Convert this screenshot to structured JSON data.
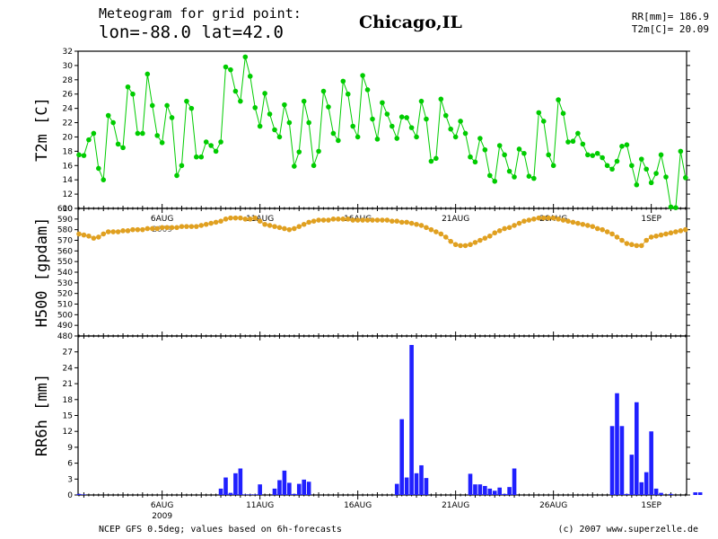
{
  "header": {
    "line1": "Meteogram for grid point:",
    "line2": "lon=-88.0  lat=42.0",
    "city": "Chicago,IL",
    "stat_rr": "RR[mm]= 186.9",
    "stat_t2m": "T2m[C]= 20.09"
  },
  "footer": {
    "source": "NCEP GFS 0.5deg; values based on 6h-forecasts",
    "credit": "(c) 2007 www.superzelle.de"
  },
  "colors": {
    "t2m": "#00cc00",
    "h500": "#e0a020",
    "rr": "#2020ff"
  },
  "chart_data": [
    {
      "type": "line",
      "ylabel": "T2m [C]",
      "ylim": [
        10,
        32
      ],
      "yticks": [
        10,
        12,
        14,
        16,
        18,
        20,
        22,
        24,
        26,
        28,
        30,
        32
      ],
      "date_labels": [
        "6AUG",
        "11AUG",
        "16AUG",
        "21AUG",
        "26AUG",
        "1SEP"
      ],
      "series": [
        {
          "values": [
            17.5,
            17.4,
            19.6,
            20.5,
            15.6,
            14,
            23,
            22,
            19,
            18.5,
            27,
            26,
            20.5,
            20.5,
            28.8,
            24.4,
            20.2,
            19.2,
            24.4,
            22.7,
            14.6,
            16,
            25,
            24,
            17.2,
            17.2,
            19.3,
            18.8,
            18,
            19.3,
            29.8,
            29.4,
            26.4,
            25,
            31.2,
            28.5,
            24.1,
            21.5,
            26.1,
            23.2,
            21,
            20,
            24.5,
            22,
            15.9,
            17.9,
            25,
            22,
            16,
            18,
            26.4,
            24.2,
            20.5,
            19.5,
            27.8,
            26,
            21.5,
            20,
            28.6,
            26.6,
            22.5,
            19.7,
            24.8,
            23.2,
            21.5,
            19.8,
            22.8,
            22.7,
            21.3,
            20,
            25,
            22.5,
            16.6,
            17,
            25.3,
            23,
            21.1,
            20,
            22.2,
            20.5,
            17.2,
            16.5,
            19.8,
            18.2,
            14.6,
            13.8,
            18.8,
            17.5,
            15.2,
            14.4,
            18.3,
            17.7,
            14.5,
            14.2,
            23.4,
            22.2,
            17.5,
            16,
            25.2,
            23.3,
            19.3,
            19.4,
            20.5,
            19,
            17.5,
            17.4,
            17.7,
            17.1,
            16,
            15.5,
            16.6,
            18.7,
            18.9,
            16,
            13.3,
            16.9,
            15.5,
            13.6,
            14.9,
            17.5,
            14.4,
            10.2,
            10.1,
            18,
            14.3
          ]
        }
      ]
    },
    {
      "type": "line",
      "ylabel": "H500 [gpdam]",
      "ylim": [
        480,
        600
      ],
      "yticks": [
        480,
        490,
        500,
        510,
        520,
        530,
        540,
        550,
        560,
        570,
        580,
        590,
        600
      ],
      "date_labels": [
        "6AUG",
        "11AUG",
        "16AUG",
        "21AUG",
        "26AUG",
        "1SEP"
      ],
      "date_sublabels": [
        "2009"
      ],
      "series": [
        {
          "values": [
            576,
            575,
            574,
            572,
            573,
            576,
            578,
            578,
            578,
            579,
            579,
            580,
            580,
            580,
            581,
            581,
            581,
            582,
            582,
            582,
            582,
            583,
            583,
            583,
            583,
            584,
            585,
            586,
            587,
            588,
            590,
            591,
            591,
            591,
            590,
            590,
            591,
            588,
            585,
            584,
            583,
            582,
            581,
            580,
            581,
            583,
            585,
            587,
            588,
            589,
            589,
            589,
            590,
            590,
            590,
            590,
            589,
            589,
            589,
            589,
            589,
            589,
            589,
            589,
            588,
            588,
            587,
            587,
            586,
            585,
            584,
            582,
            580,
            578,
            576,
            573,
            569,
            566,
            565,
            565,
            566,
            568,
            570,
            572,
            574,
            577,
            579,
            581,
            582,
            584,
            586,
            588,
            589,
            590,
            591,
            591,
            591,
            591,
            590,
            589,
            588,
            587,
            586,
            585,
            584,
            583,
            581,
            580,
            578,
            576,
            573,
            570,
            567,
            566,
            565,
            565,
            570,
            573,
            574,
            575,
            576,
            577,
            578,
            579,
            580
          ]
        }
      ]
    },
    {
      "type": "bar",
      "ylabel": "RR6h [mm]",
      "ylim": [
        0,
        30
      ],
      "yticks": [
        0,
        3,
        6,
        9,
        12,
        15,
        18,
        21,
        24,
        27
      ],
      "date_labels": [
        "6AUG",
        "11AUG",
        "16AUG",
        "21AUG",
        "26AUG",
        "1SEP"
      ],
      "date_sublabels": [
        "2009"
      ],
      "values": [
        0.2,
        0.1,
        0,
        0,
        0,
        0,
        0,
        0,
        0,
        0,
        0,
        0,
        0,
        0,
        0,
        0,
        0,
        0,
        0,
        0,
        0,
        0,
        0,
        0,
        0,
        0,
        0,
        0,
        0,
        1.2,
        3.3,
        0.4,
        4.1,
        5,
        0.1,
        0.1,
        0.1,
        2,
        0,
        0,
        1.2,
        2.8,
        4.6,
        2.3,
        0.2,
        2.1,
        2.9,
        2.5,
        0,
        0,
        0,
        0,
        0,
        0,
        0,
        0,
        0,
        0,
        0,
        0,
        0,
        0,
        0,
        0,
        0,
        2.1,
        14.3,
        3.3,
        28.3,
        4.1,
        5.6,
        3.2,
        0,
        0,
        0,
        0,
        0,
        0,
        0,
        0,
        4,
        2,
        2,
        1.7,
        1.2,
        0.8,
        1.4,
        0.2,
        1.5,
        5,
        0,
        0,
        0,
        0,
        0,
        0,
        0,
        0,
        0,
        0,
        0,
        0,
        0,
        0,
        0,
        0,
        0,
        0,
        0,
        13,
        19.2,
        13,
        0.2,
        7.6,
        17.5,
        2.4,
        4.3,
        12,
        1.2,
        0.4,
        0,
        0.2,
        0,
        0,
        0,
        0,
        0.5,
        0.5,
        0,
        0,
        0,
        0,
        0,
        0.2
      ]
    }
  ]
}
